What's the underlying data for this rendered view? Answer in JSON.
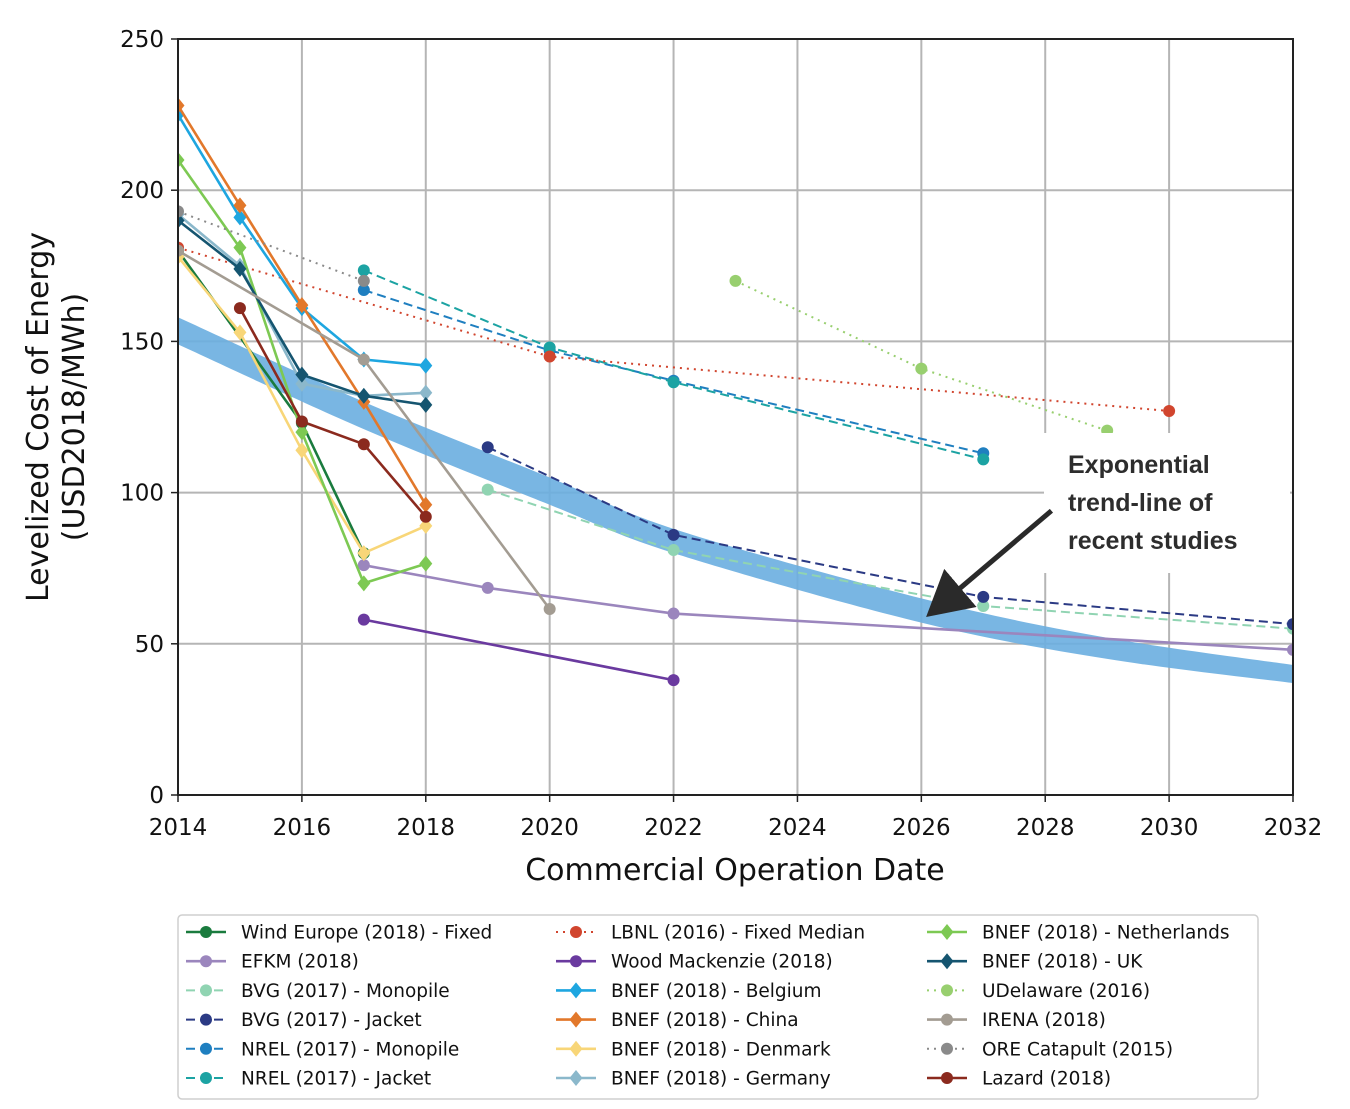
{
  "chart_data": {
    "type": "line",
    "xlabel": "Commercial Operation Date",
    "ylabel_line1": "Levelized Cost of Energy",
    "ylabel_line2": "(USD2018/MWh)",
    "xlim": [
      2014,
      2032
    ],
    "ylim": [
      0,
      250
    ],
    "xticks": [
      2014,
      2016,
      2018,
      2020,
      2022,
      2024,
      2026,
      2028,
      2030,
      2032
    ],
    "yticks": [
      0,
      50,
      100,
      150,
      200,
      250
    ],
    "grid": true,
    "trend_band": {
      "label": "Exponential trend-line of recent studies",
      "upper": [
        [
          2014,
          158
        ],
        [
          2017,
          130
        ],
        [
          2020,
          105
        ],
        [
          2022,
          88
        ],
        [
          2026,
          65
        ],
        [
          2029,
          52
        ],
        [
          2032,
          43
        ]
      ],
      "lower": [
        [
          2014,
          149
        ],
        [
          2017,
          121
        ],
        [
          2020,
          96
        ],
        [
          2022,
          80
        ],
        [
          2026,
          57
        ],
        [
          2029,
          45
        ],
        [
          2032,
          37
        ]
      ]
    },
    "annotation": {
      "lines": [
        "Exponential",
        "trend-line of",
        "recent studies"
      ],
      "arrow_tail": [
        2028.1,
        94
      ],
      "arrow_head": [
        2026.2,
        61
      ]
    },
    "series": [
      {
        "name": "Wind Europe (2018) - Fixed",
        "color": "#1a7b3e",
        "dash": "solid",
        "marker": "circle",
        "points": [
          [
            2014,
            180
          ],
          [
            2016,
            123
          ],
          [
            2017,
            80
          ]
        ]
      },
      {
        "name": "EFKM (2018)",
        "color": "#9b86bd",
        "dash": "solid",
        "marker": "circle",
        "points": [
          [
            2017,
            76
          ],
          [
            2019,
            68.5
          ],
          [
            2022,
            60
          ],
          [
            2032,
            48
          ]
        ]
      },
      {
        "name": "BVG (2017) - Monopile",
        "color": "#90d4b2",
        "dash": "dashed",
        "marker": "circle",
        "points": [
          [
            2019,
            101
          ],
          [
            2022,
            81
          ],
          [
            2027,
            62.5
          ],
          [
            2032,
            55
          ]
        ]
      },
      {
        "name": "BVG (2017) - Jacket",
        "color": "#2b3a84",
        "dash": "dashed",
        "marker": "circle",
        "points": [
          [
            2019,
            115
          ],
          [
            2022,
            86
          ],
          [
            2027,
            65.5
          ],
          [
            2032,
            56.5
          ]
        ]
      },
      {
        "name": "NREL (2017) - Monopile",
        "color": "#1f7fc0",
        "dash": "dashed",
        "marker": "circle",
        "points": [
          [
            2017,
            167
          ],
          [
            2020,
            147
          ],
          [
            2022,
            137
          ],
          [
            2027,
            113
          ]
        ]
      },
      {
        "name": "NREL (2017) - Jacket",
        "color": "#1ca3a3",
        "dash": "dashed",
        "marker": "circle",
        "points": [
          [
            2017,
            173.5
          ],
          [
            2020,
            148
          ],
          [
            2022,
            136.5
          ],
          [
            2027,
            111
          ]
        ]
      },
      {
        "name": "LBNL (2016) - Fixed Median",
        "color": "#d1452e",
        "dash": "dotted",
        "marker": "circle",
        "points": [
          [
            2014,
            181
          ],
          [
            2020,
            145
          ],
          [
            2030,
            127
          ]
        ]
      },
      {
        "name": "Wood Mackenzie (2018)",
        "color": "#6a3a9f",
        "dash": "solid",
        "marker": "circle",
        "points": [
          [
            2017,
            58
          ],
          [
            2022,
            38
          ]
        ]
      },
      {
        "name": "BNEF (2018) - Belgium",
        "color": "#1ea6e0",
        "dash": "solid",
        "marker": "diamond",
        "points": [
          [
            2014,
            225
          ],
          [
            2015,
            191
          ],
          [
            2016,
            161
          ],
          [
            2017,
            144
          ],
          [
            2018,
            142
          ]
        ]
      },
      {
        "name": "BNEF (2018) - China",
        "color": "#e2782b",
        "dash": "solid",
        "marker": "diamond",
        "points": [
          [
            2014,
            228
          ],
          [
            2015,
            195
          ],
          [
            2016,
            162
          ],
          [
            2017,
            130
          ],
          [
            2018,
            96
          ]
        ]
      },
      {
        "name": "BNEF (2018) - Denmark",
        "color": "#f8d678",
        "dash": "solid",
        "marker": "diamond",
        "points": [
          [
            2014,
            178
          ],
          [
            2015,
            153
          ],
          [
            2016,
            114
          ],
          [
            2017,
            80
          ],
          [
            2018,
            89
          ]
        ]
      },
      {
        "name": "BNEF (2018) - Germany",
        "color": "#8bb8cb",
        "dash": "solid",
        "marker": "diamond",
        "points": [
          [
            2014,
            192
          ],
          [
            2015,
            175
          ],
          [
            2016,
            136
          ],
          [
            2017,
            132
          ],
          [
            2018,
            133
          ]
        ]
      },
      {
        "name": "BNEF (2018) - Netherlands",
        "color": "#7dc953",
        "dash": "solid",
        "marker": "diamond",
        "points": [
          [
            2014,
            210
          ],
          [
            2015,
            181
          ],
          [
            2016,
            120
          ],
          [
            2017,
            70
          ],
          [
            2018,
            76.5
          ]
        ]
      },
      {
        "name": "BNEF (2018) - UK",
        "color": "#155570",
        "dash": "solid",
        "marker": "diamond",
        "points": [
          [
            2014,
            190
          ],
          [
            2015,
            174
          ],
          [
            2016,
            139
          ],
          [
            2017,
            132
          ],
          [
            2018,
            129
          ]
        ]
      },
      {
        "name": "UDelaware (2016)",
        "color": "#98cf6f",
        "dash": "dotted",
        "marker": "circle",
        "points": [
          [
            2023,
            170
          ],
          [
            2026,
            141
          ],
          [
            2029,
            120.5
          ]
        ]
      },
      {
        "name": "IRENA (2018)",
        "color": "#a39c92",
        "dash": "solid",
        "marker": "circle",
        "points": [
          [
            2014,
            180
          ],
          [
            2017,
            144
          ],
          [
            2020,
            61.5
          ]
        ]
      },
      {
        "name": "ORE Catapult (2015)",
        "color": "#8a8a8a",
        "dash": "dotted",
        "marker": "circle",
        "points": [
          [
            2014,
            193
          ],
          [
            2017,
            170
          ]
        ]
      },
      {
        "name": "Lazard (2018)",
        "color": "#8b2a1e",
        "dash": "solid",
        "marker": "circle",
        "points": [
          [
            2015,
            161
          ],
          [
            2016,
            123.5
          ],
          [
            2017,
            116
          ],
          [
            2018,
            92
          ]
        ]
      }
    ],
    "legend_location": "bottom-center"
  }
}
